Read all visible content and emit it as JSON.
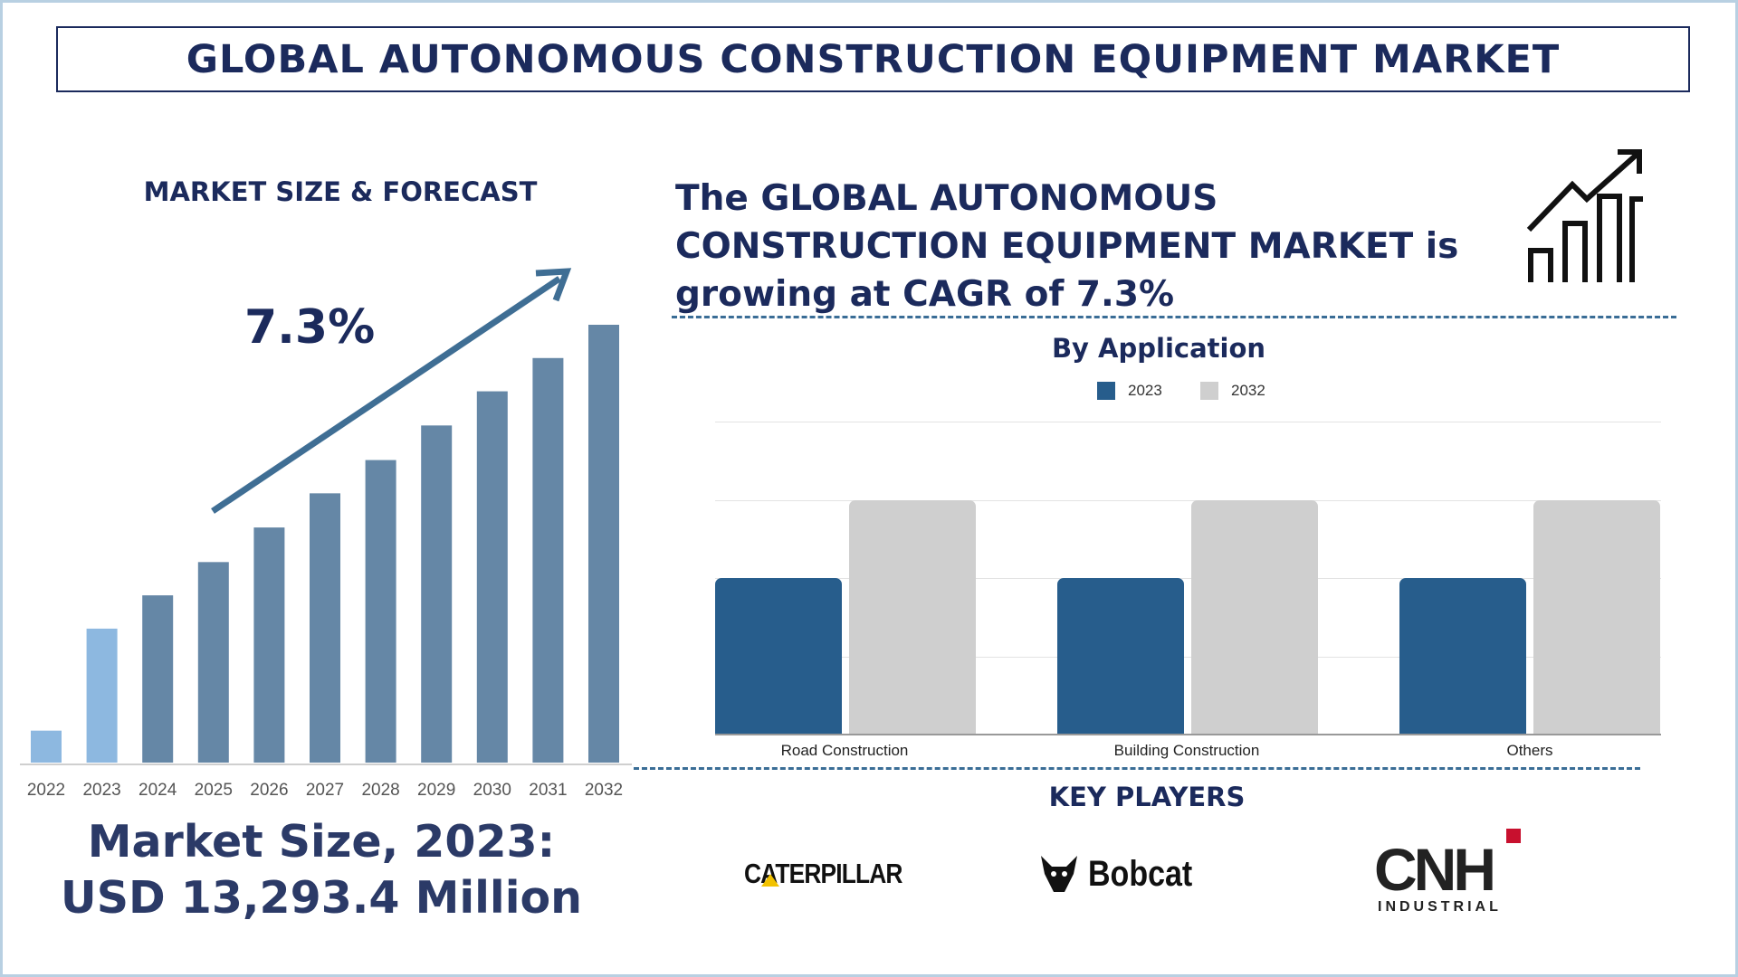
{
  "title": "GLOBAL AUTONOMOUS CONSTRUCTION EQUIPMENT MARKET",
  "left": {
    "section_title": "MARKET SIZE & FORECAST",
    "cagr_label": "7.3%",
    "market_size_line1": "Market Size, 2023:",
    "market_size_line2": "USD 13,293.4 Million"
  },
  "right": {
    "headline": [
      "The GLOBAL AUTONOMOUS",
      "CONSTRUCTION EQUIPMENT MARKET is",
      "growing at CAGR of 7.3%"
    ],
    "chart_title": "By Application",
    "key_players_title": "KEY PLAYERS",
    "key_players": [
      "CATERPILLAR",
      "Bobcat",
      "CNH INDUSTRIAL"
    ]
  },
  "colors": {
    "navy": "#1b2a5c",
    "bar_forecast": "#6587a6",
    "bar_2023": "#8db8e0",
    "bar_2022": "#8db8e0",
    "series_2023": "#275d8c",
    "series_2032": "#cfcfcf",
    "dash": "#3a6d96"
  },
  "chart_data": [
    {
      "type": "bar",
      "categories": [
        "2022",
        "2023",
        "2024",
        "2025",
        "2026",
        "2027",
        "2028",
        "2029",
        "2030",
        "2031",
        "2032"
      ],
      "values": [
        7.3,
        30.6,
        38.2,
        45.8,
        53.7,
        61.5,
        69.1,
        77.0,
        84.8,
        92.4,
        100
      ],
      "value_note": "relative heights, 2032 = 100 (no value axis shown)",
      "highlight": [
        "2022",
        "2023"
      ],
      "trend_arrow": true
    },
    {
      "type": "bar",
      "title": "By Application",
      "categories": [
        "Road Construction",
        "Building Construction",
        "Others"
      ],
      "series": [
        {
          "name": "2023",
          "values": [
            2,
            2,
            2
          ]
        },
        {
          "name": "2032",
          "values": [
            3,
            3,
            3
          ]
        }
      ],
      "ylim": [
        0,
        4
      ],
      "grid": true,
      "legend": "top"
    }
  ]
}
